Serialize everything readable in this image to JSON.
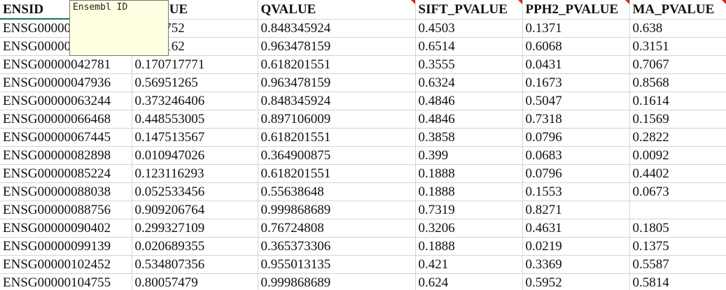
{
  "columns": [
    "ENSID",
    "PVALUE",
    "QVALUE",
    "SIFT_PVALUE",
    "PPH2_PVALUE",
    "MA_PVALUE"
  ],
  "column_comments": [
    false,
    false,
    true,
    true,
    true,
    true
  ],
  "tooltip": {
    "text": "Ensembl ID"
  },
  "rows": [
    [
      "ENSG00000",
      "0.790752",
      "0.848345924",
      "0.4503",
      "0.1371",
      "0.638"
    ],
    [
      "ENSG00000",
      "0.209162",
      "0.963478159",
      "0.6514",
      "0.6068",
      "0.3151"
    ],
    [
      "ENSG00000042781",
      "0.170717771",
      "0.618201551",
      "0.3555",
      "0.0431",
      "0.7067"
    ],
    [
      "ENSG00000047936",
      "0.56951265",
      "0.963478159",
      "0.6324",
      "0.1673",
      "0.8568"
    ],
    [
      "ENSG00000063244",
      "0.373246406",
      "0.848345924",
      "0.4846",
      "0.5047",
      "0.1614"
    ],
    [
      "ENSG00000066468",
      "0.448553005",
      "0.897106009",
      "0.4846",
      "0.7318",
      "0.1569"
    ],
    [
      "ENSG00000067445",
      "0.147513567",
      "0.618201551",
      "0.3858",
      "0.0796",
      "0.2822"
    ],
    [
      "ENSG00000082898",
      "0.010947026",
      "0.364900875",
      "0.399",
      "0.0683",
      "0.0092"
    ],
    [
      "ENSG00000085224",
      "0.123116293",
      "0.618201551",
      "0.1888",
      "0.0796",
      "0.4402"
    ],
    [
      "ENSG00000088038",
      "0.052533456",
      "0.55638648",
      "0.1888",
      "0.1553",
      "0.0673"
    ],
    [
      "ENSG00000088756",
      "0.909206764",
      "0.999868689",
      "0.7319",
      "0.8271",
      ""
    ],
    [
      "ENSG00000090402",
      "0.299327109",
      "0.76724808",
      "0.3206",
      "0.4631",
      "0.1805"
    ],
    [
      "ENSG00000099139",
      "0.020689355",
      "0.365373306",
      "0.1888",
      "0.0219",
      "0.1375"
    ],
    [
      "ENSG00000102452",
      "0.534807356",
      "0.955013135",
      "0.421",
      "0.3369",
      "0.5587"
    ],
    [
      "ENSG00000104755",
      "0.80057479",
      "0.999868689",
      "0.624",
      "0.5952",
      "0.5814"
    ]
  ]
}
